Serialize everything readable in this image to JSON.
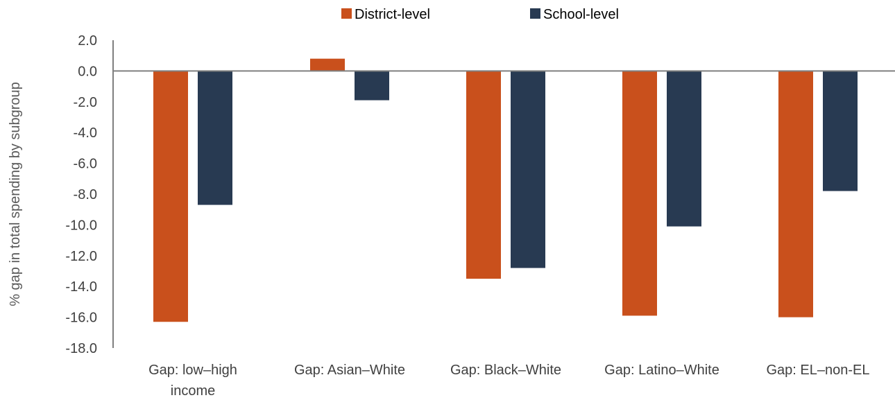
{
  "chart_data": {
    "type": "bar",
    "ylabel": "% gap in total spending by subgroup",
    "ylim": [
      -18,
      2
    ],
    "yticks": [
      2,
      0,
      -2,
      -4,
      -6,
      -8,
      -10,
      -12,
      -14,
      -16,
      -18
    ],
    "ytick_labels": [
      "2.0",
      "0.0",
      "-2.0",
      "-4.0",
      "-6.0",
      "-8.0",
      "-10.0",
      "-12.0",
      "-14.0",
      "-16.0",
      "-18.0"
    ],
    "categories": [
      [
        "Gap: low–high",
        "income"
      ],
      [
        "Gap: Asian–White"
      ],
      [
        "Gap: Black–White"
      ],
      [
        "Gap: Latino–White"
      ],
      [
        "Gap: EL–non-EL"
      ]
    ],
    "series": [
      {
        "name": "District-level",
        "color": "#C9501C",
        "values": [
          -16.3,
          0.8,
          -13.5,
          -15.9,
          -16.0
        ]
      },
      {
        "name": "School-level",
        "color": "#283A52",
        "values": [
          -8.7,
          -1.9,
          -12.8,
          -10.1,
          -7.8
        ]
      }
    ],
    "legend_position": "top-center",
    "grid": false
  }
}
